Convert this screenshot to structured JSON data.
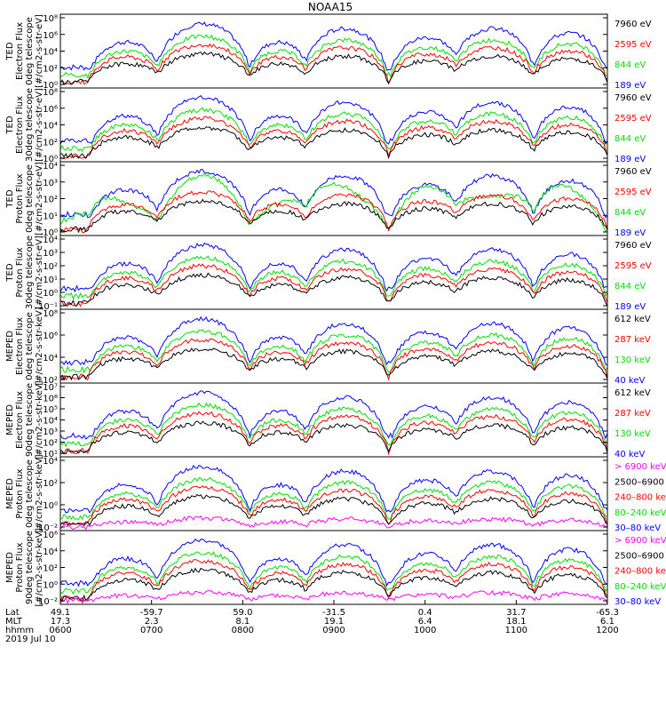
{
  "title": "NOAA15",
  "colors": {
    "black": "#000000",
    "red": "#ff0000",
    "green": "#00e000",
    "blue": "#0000ff",
    "magenta": "#ff00ff"
  },
  "chart_data": {
    "type": "line",
    "title": "NOAA15",
    "date": "2019 Jul 10",
    "xaxis": {
      "hhmm": [
        "0600",
        "0700",
        "0800",
        "0900",
        "1000",
        "1100",
        "1200"
      ],
      "lat": [
        "49.1",
        "-59.7",
        "59.0",
        "-31.5",
        "0.4",
        "31.7",
        "-65.3"
      ],
      "mlt": [
        "17.3",
        "2.3",
        "8.1",
        "19.1",
        "6.4",
        "18.1",
        "6.1"
      ],
      "row_labels": [
        "Lat",
        "MLT",
        "hhmm"
      ],
      "xlim": [
        "0600",
        "1200"
      ]
    },
    "panels": [
      {
        "instrument": "TED",
        "ylabel": [
          "Electron Flux",
          "0deg telescope",
          "[#/cm2-s-str-eV]"
        ],
        "yticks": [
          "10⁸",
          "10⁶",
          "10⁴",
          "10²",
          "10⁰"
        ],
        "ylog": [
          0,
          8
        ],
        "legend": [
          {
            "label": "7960 eV",
            "color": "black"
          },
          {
            "label": "2595 eV",
            "color": "red"
          },
          {
            "label": "844 eV",
            "color": "green"
          },
          {
            "label": "189 eV",
            "color": "blue"
          }
        ]
      },
      {
        "instrument": "TED",
        "ylabel": [
          "Electron Flux",
          "30deg telescope",
          "[#/cm2-s-str-eV]"
        ],
        "yticks": [
          "10⁸",
          "10⁶",
          "10⁴",
          "10²",
          "10⁰"
        ],
        "ylog": [
          0,
          8
        ],
        "legend": [
          {
            "label": "7960 eV",
            "color": "black"
          },
          {
            "label": "2595 eV",
            "color": "red"
          },
          {
            "label": "844 eV",
            "color": "green"
          },
          {
            "label": "189 eV",
            "color": "blue"
          }
        ]
      },
      {
        "instrument": "TED",
        "ylabel": [
          "Proton Flux",
          "0deg telescope",
          "[#/cm2-s-str-eV]"
        ],
        "yticks": [
          "10⁴",
          "10³",
          "10²",
          "10¹",
          "10⁰"
        ],
        "ylog": [
          0,
          4
        ],
        "legend": [
          {
            "label": "7960 eV",
            "color": "black"
          },
          {
            "label": "2595 eV",
            "color": "red"
          },
          {
            "label": "844 eV",
            "color": "green"
          },
          {
            "label": "189 eV",
            "color": "blue"
          }
        ]
      },
      {
        "instrument": "TED",
        "ylabel": [
          "Proton Flux",
          "30deg telescope",
          "[#/cm2-s-str-eV]"
        ],
        "yticks": [
          "10⁴",
          "10³",
          "10²",
          "10¹",
          "10⁰",
          "10⁻¹"
        ],
        "ylog": [
          -1,
          4
        ],
        "legend": [
          {
            "label": "7960 eV",
            "color": "black"
          },
          {
            "label": "2595 eV",
            "color": "red"
          },
          {
            "label": "844 eV",
            "color": "green"
          },
          {
            "label": "189 eV",
            "color": "blue"
          }
        ]
      },
      {
        "instrument": "MEPED",
        "ylabel": [
          "Electron Flux",
          "0deg telescope",
          "[#/cm2-s-str-keV]"
        ],
        "yticks": [
          "10⁸",
          "10⁶",
          "10⁴",
          "10²"
        ],
        "ylog": [
          1,
          8
        ],
        "legend": [
          {
            "label": "612 keV",
            "color": "black"
          },
          {
            "label": "287 keV",
            "color": "red"
          },
          {
            "label": "130 keV",
            "color": "green"
          },
          {
            "label": "40 keV",
            "color": "blue"
          }
        ]
      },
      {
        "instrument": "MEPED",
        "ylabel": [
          "Electron Flux",
          "90deg telescope",
          "[#/cm2-s-str-keV]"
        ],
        "yticks": [
          "10⁷",
          "10⁶",
          "10⁵",
          "10⁴",
          "10³",
          "10²",
          "10¹"
        ],
        "ylog": [
          1,
          7
        ],
        "legend": [
          {
            "label": "612 keV",
            "color": "black"
          },
          {
            "label": "287 keV",
            "color": "red"
          },
          {
            "label": "130 keV",
            "color": "green"
          },
          {
            "label": "40 keV",
            "color": "blue"
          }
        ]
      },
      {
        "instrument": "MEPED",
        "ylabel": [
          "Proton Flux",
          "0deg telescope",
          "[#/cm2-s-str-keV]"
        ],
        "yticks": [
          "10⁴",
          "10²",
          "10⁰",
          "10⁻²"
        ],
        "ylog": [
          -2,
          5
        ],
        "legend": [
          {
            "label": "> 6900 keV",
            "color": "magenta"
          },
          {
            "label": "2500–6900",
            "color": "black"
          },
          {
            "label": "240–800 ke",
            "color": "red"
          },
          {
            "label": "80–240 keV",
            "color": "green"
          },
          {
            "label": "30–80 keV",
            "color": "blue"
          }
        ]
      },
      {
        "instrument": "MEPED",
        "ylabel": [
          "Proton Flux",
          "90deg telescope",
          "[#/cm2-s-str-keV]"
        ],
        "yticks": [
          "10⁶",
          "10⁴",
          "10²",
          "10⁰",
          "10⁻²"
        ],
        "ylog": [
          -2,
          6
        ],
        "legend": [
          {
            "label": "> 6900 keV",
            "color": "magenta"
          },
          {
            "label": "2500–6900",
            "color": "black"
          },
          {
            "label": "240–800 ke",
            "color": "red"
          },
          {
            "label": "80–240 keV",
            "color": "green"
          },
          {
            "label": "30–80 keV",
            "color": "blue"
          }
        ]
      }
    ],
    "passes": [
      {
        "time": 0.12,
        "width": 0.07,
        "amp": 1.0
      },
      {
        "time": 0.26,
        "width": 0.09,
        "amp": 1.4
      },
      {
        "time": 0.4,
        "width": 0.06,
        "amp": 1.0
      },
      {
        "time": 0.52,
        "width": 0.08,
        "amp": 1.3
      },
      {
        "time": 0.67,
        "width": 0.07,
        "amp": 1.1
      },
      {
        "time": 0.79,
        "width": 0.08,
        "amp": 1.3
      },
      {
        "time": 0.93,
        "width": 0.07,
        "amp": 1.2
      }
    ]
  }
}
